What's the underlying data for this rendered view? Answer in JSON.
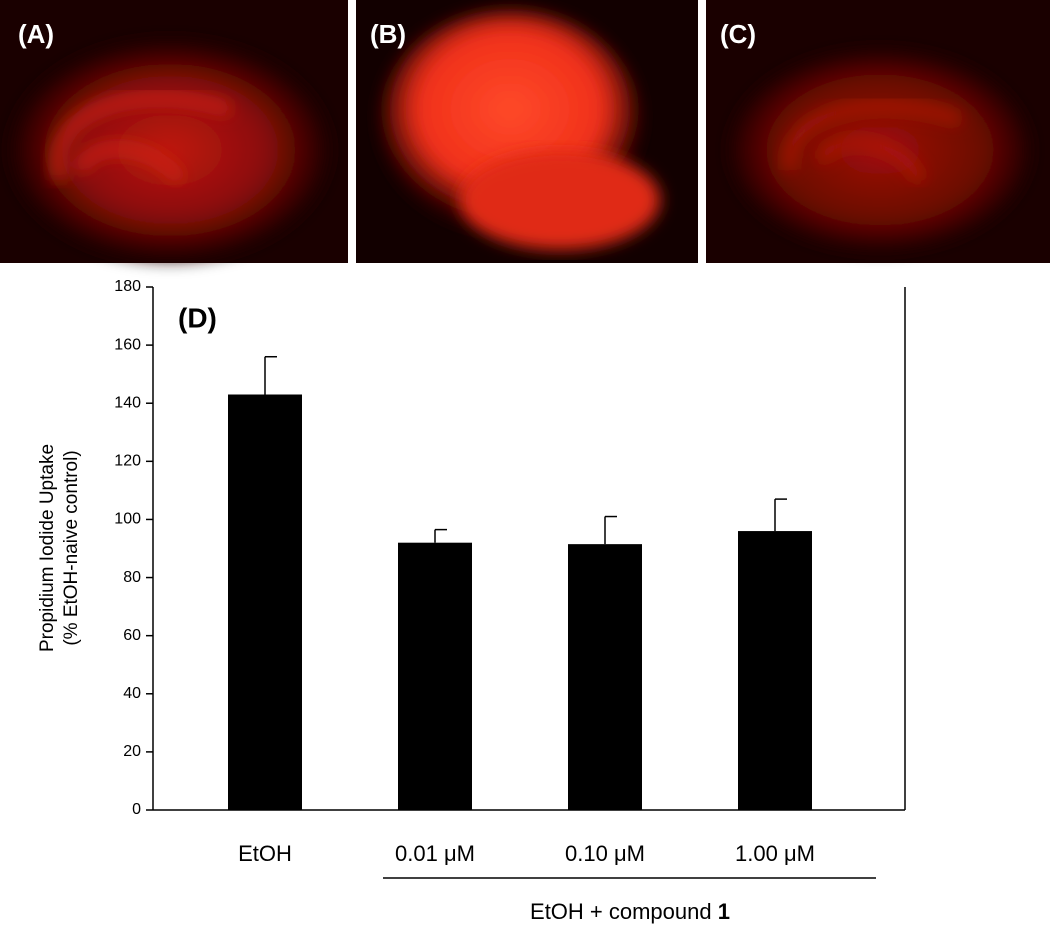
{
  "panels": [
    {
      "label": "(A)"
    },
    {
      "label": "(B)"
    },
    {
      "label": "(C)"
    }
  ],
  "chart_data": {
    "type": "bar",
    "panel_label": "(D)",
    "ylabel": [
      "Propidium Iodide Uptake",
      "(% EtOH-naive control)"
    ],
    "categories": [
      "EtOH",
      "0.01 μM",
      "0.10 μM",
      "1.00 μM"
    ],
    "values": [
      143,
      92,
      91.5,
      96
    ],
    "errors": [
      13,
      4.5,
      9.5,
      11
    ],
    "color": "#000000",
    "ylim": [
      0,
      180
    ],
    "yticks": [
      0,
      20,
      40,
      60,
      80,
      100,
      120,
      140,
      160,
      180
    ],
    "group_label": [
      "EtOH + compound ",
      "1"
    ]
  }
}
